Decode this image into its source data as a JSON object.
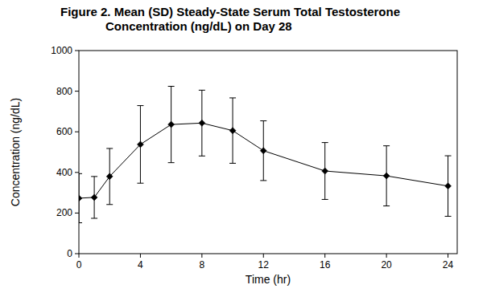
{
  "chart_data": {
    "type": "line",
    "title": [
      "Figure 2.  Mean (SD) Steady-State Serum Total Testosterone",
      "Concentration (ng/dL) on Day 28"
    ],
    "x_label": "Time (hr)",
    "y_label": "Concentration (ng/dL)",
    "x": [
      0,
      1,
      2,
      4,
      6,
      8,
      10,
      12,
      16,
      20,
      24
    ],
    "values": [
      273,
      277,
      380,
      538,
      636,
      643,
      606,
      507,
      407,
      383,
      333
    ],
    "sd": [
      121,
      103,
      138,
      191,
      188,
      162,
      161,
      147,
      140,
      148,
      149
    ],
    "color": "#000000",
    "marker": "diamond",
    "xlim": [
      0,
      24.6
    ],
    "xticks": [
      0,
      4,
      8,
      12,
      16,
      20,
      24
    ],
    "ylim": [
      0,
      1000
    ],
    "yticks": [
      0,
      200,
      400,
      600,
      800,
      1000
    ],
    "grid": false
  }
}
